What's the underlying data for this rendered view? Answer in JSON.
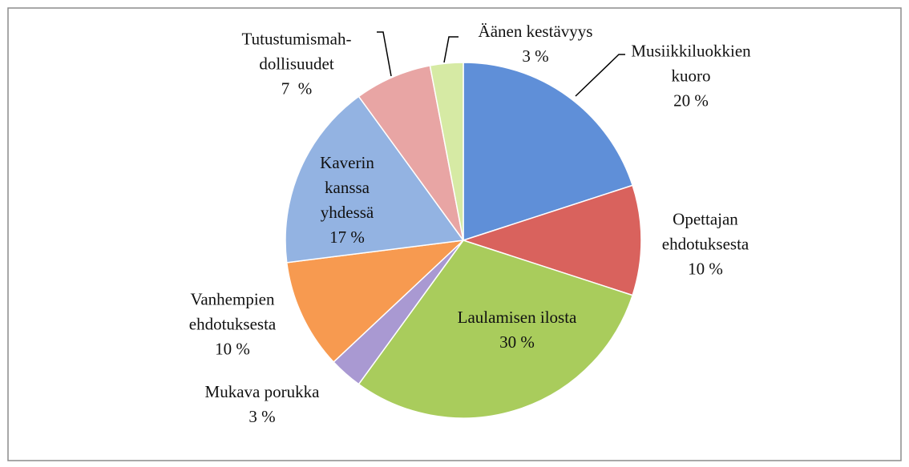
{
  "chart_data": {
    "type": "pie",
    "categories": [
      "Musiikkiluokkien\nkuoro",
      "Opettajan\nehdotuksesta",
      "Laulamisen ilosta",
      "Mukava porukka",
      "Vanhempien\nehdotuksesta",
      "Kaverin\nkanssa\nyhdessä",
      "Tutustumismah-\ndollisuudet",
      "Äänen kestävyys"
    ],
    "values": [
      20,
      10,
      30,
      3,
      10,
      17,
      7,
      3
    ],
    "value_labels": [
      "20 %",
      "10 %",
      "30 %",
      "3 %",
      "10 %",
      "17 %",
      "7  %",
      "3 %"
    ],
    "colors": [
      "#5f8fd8",
      "#d9625d",
      "#a9cc5c",
      "#a999d2",
      "#f79a50",
      "#93b3e2",
      "#e8a5a4",
      "#d6eaa4"
    ]
  }
}
